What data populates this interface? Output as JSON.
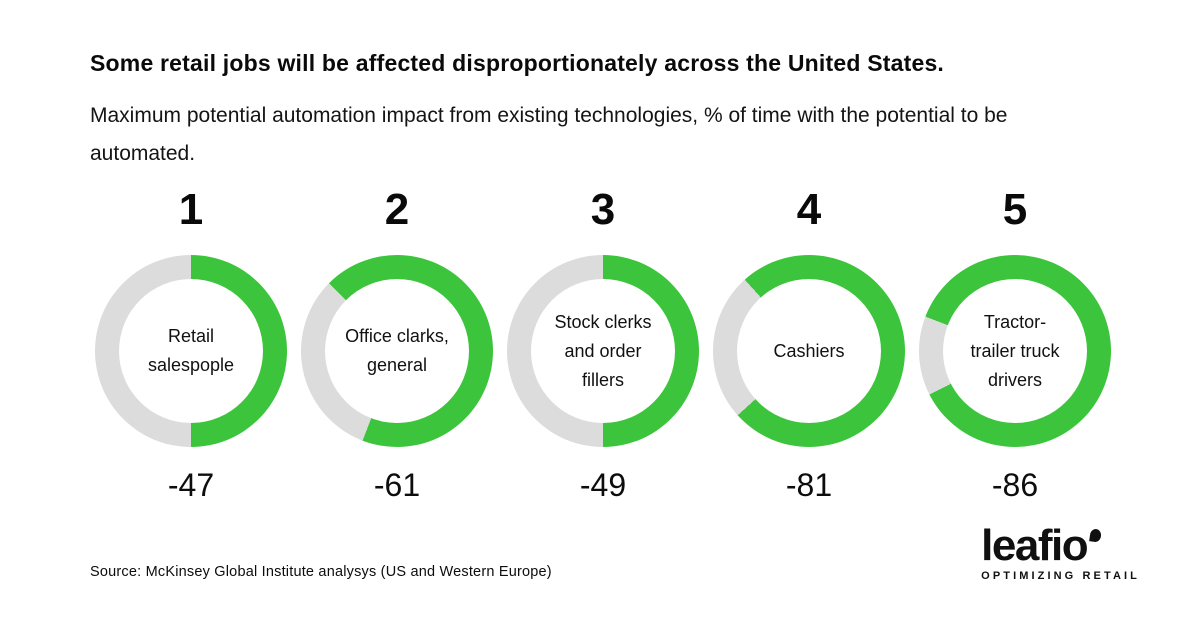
{
  "header": {
    "title": "Some retail jobs will be affected disproportionately across the United States.",
    "subtitle": "Maximum potential automation impact from existing technologies, % of time with the potential to be automated."
  },
  "chart_data": {
    "type": "pie",
    "subtype": "donut-small-multiples",
    "title": "Some retail jobs will be affected disproportionately across the United States.",
    "subtitle": "Maximum potential automation impact from existing technologies, % of time with the potential to be automated.",
    "legend_position": "none",
    "grid": false,
    "categories": [
      "Retail salespople",
      "Office clarks, general",
      "Stock clerks and order fillers",
      "Cashiers",
      "Tractor-trailer truck drivers"
    ],
    "values": [
      -47,
      -61,
      -49,
      -81,
      -86
    ],
    "items": [
      {
        "rank": "1",
        "label": "Retail salespople",
        "label_lines": [
          "Retail",
          "salespople"
        ],
        "value": -47,
        "value_label": "-47",
        "arc": {
          "green_from_deg": 0,
          "green_sweep_deg": 180
        }
      },
      {
        "rank": "2",
        "label": "Office clarks, general",
        "label_lines": [
          "Office clarks,",
          "general"
        ],
        "value": -61,
        "value_label": "-61",
        "arc": {
          "green_from_deg": 315,
          "green_sweep_deg": 246
        }
      },
      {
        "rank": "3",
        "label": "Stock clerks and order fillers",
        "label_lines": [
          "Stock clerks",
          "and order",
          "fillers"
        ],
        "value": -49,
        "value_label": "-49",
        "arc": {
          "green_from_deg": 0,
          "green_sweep_deg": 180
        }
      },
      {
        "rank": "4",
        "label": "Cashiers",
        "label_lines": [
          "Cashiers"
        ],
        "value": -81,
        "value_label": "-81",
        "arc": {
          "green_from_deg": 318,
          "green_sweep_deg": 270
        }
      },
      {
        "rank": "5",
        "label": "Tractor-trailer truck drivers",
        "label_lines": [
          "Tractor-",
          "trailer truck",
          "drivers"
        ],
        "value": -86,
        "value_label": "-86",
        "arc": {
          "green_from_deg": 291,
          "green_sweep_deg": 312
        }
      }
    ],
    "colors": {
      "filled": "#3CC53C",
      "track": "#DCDCDC",
      "text": "#0D0D0D"
    }
  },
  "footer": {
    "source": "Source: McKinsey Global Institute analysys (US and Western Europe)",
    "logo": {
      "wordmark": "leafio",
      "tagline": "OPTIMIZING RETAIL"
    }
  }
}
